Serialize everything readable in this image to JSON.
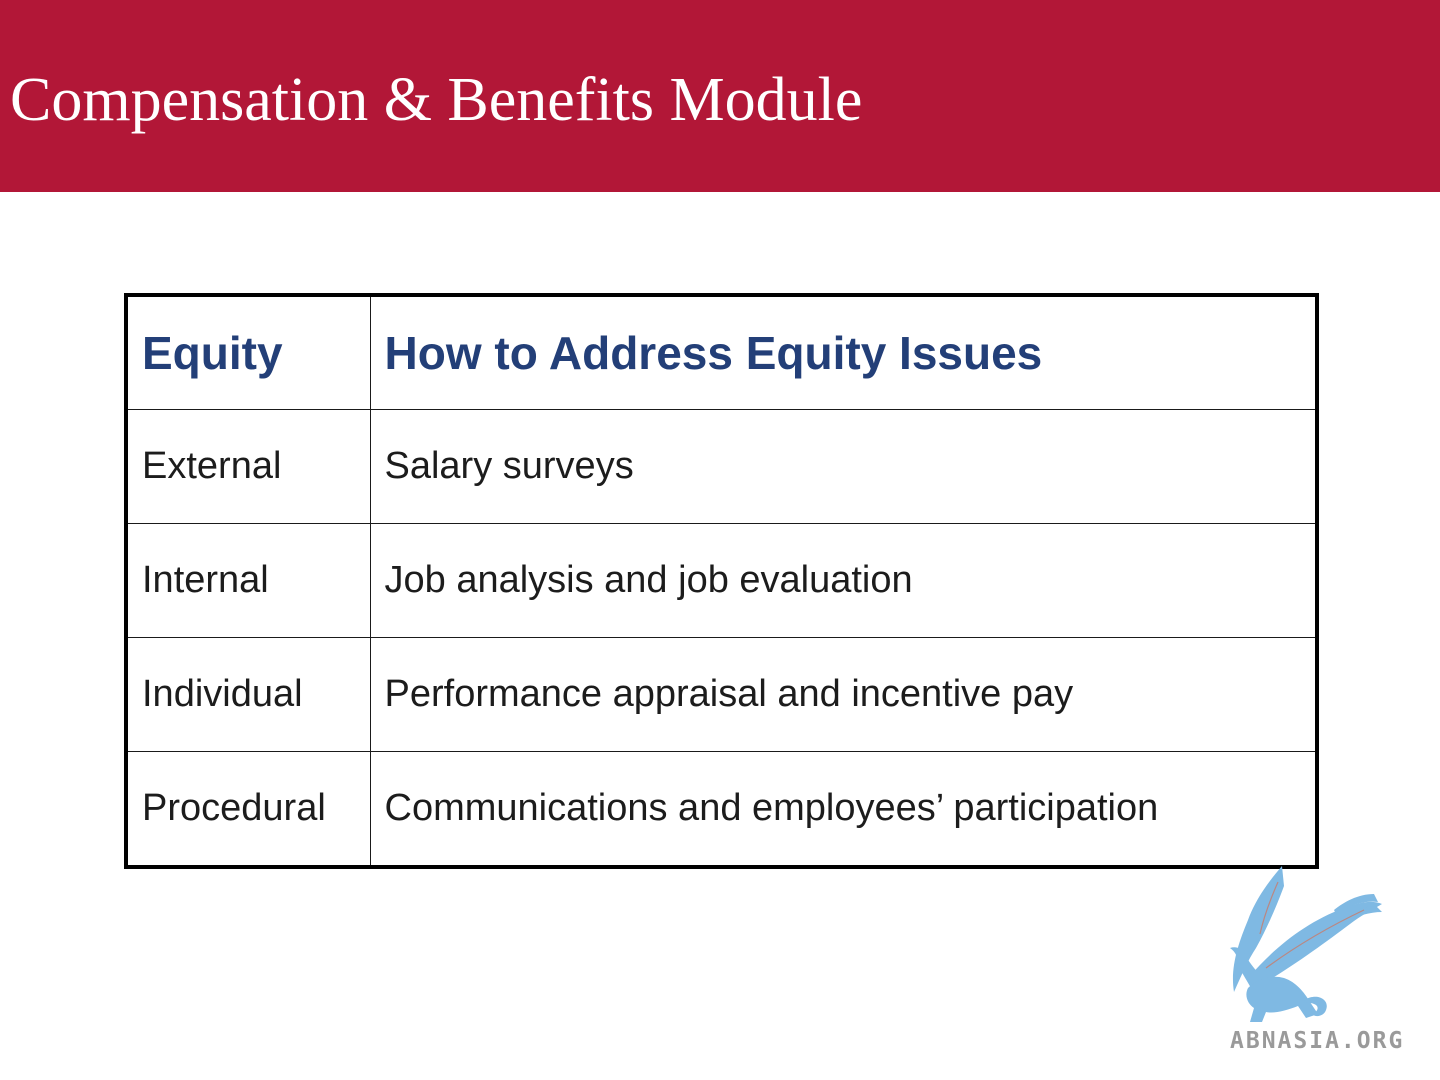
{
  "slide": {
    "title": "Compensation & Benefits Module",
    "header_color": "#b21737"
  },
  "table": {
    "headers": [
      "Equity",
      "How to Address Equity Issues"
    ],
    "rows": [
      [
        "External",
        "Salary surveys"
      ],
      [
        "Internal",
        "Job analysis and job evaluation"
      ],
      [
        "Individual",
        "Performance appraisal and incentive pay"
      ],
      [
        "Procedural",
        "Communications and employees’ participation"
      ]
    ],
    "header_text_color": "#233f78"
  },
  "logo": {
    "icon": "griffin-icon",
    "text": "ABNASIA.ORG",
    "color": "#7fb9e3"
  }
}
